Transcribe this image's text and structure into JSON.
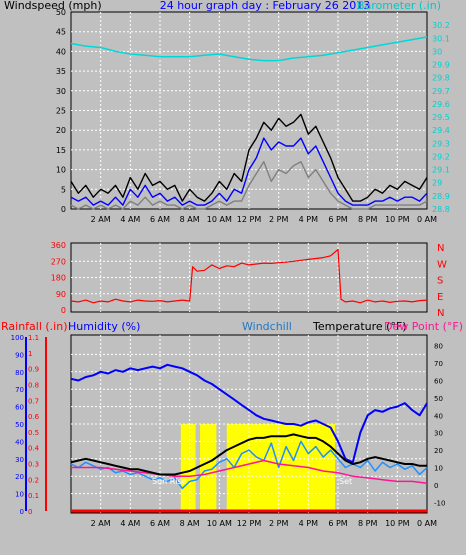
{
  "chart_data": [
    {
      "type": "line",
      "title": "24 hour graph day : February 26 2013",
      "ylabel_left": "Windspeed (mph)",
      "ylabel_right": "Barometer (.in)",
      "x_ticks": [
        "2 AM",
        "4 AM",
        "6 AM",
        "8 AM",
        "10 AM",
        "12 PM",
        "2 PM",
        "4 PM",
        "6 PM",
        "8 PM",
        "10 PM",
        "0 AM"
      ],
      "ylim_left": [
        0,
        50
      ],
      "ylim_right": [
        28.8,
        30.3
      ],
      "yticks_left": [
        0,
        5,
        10,
        15,
        20,
        25,
        30,
        35,
        40,
        45,
        50
      ],
      "yticks_right": [
        "28.8",
        "28.9",
        "29",
        "29.1",
        "29.2",
        "29.3",
        "29.4",
        "29.5",
        "29.6",
        "29.7",
        "29.8",
        "29.9",
        "30",
        "30.1",
        "30.2"
      ],
      "grid": true,
      "colors": {
        "gust": "#000000",
        "avg": "#0000ff",
        "low": "#808080",
        "barometer": "#00d8d8"
      },
      "series": [
        {
          "key": "barometer",
          "axis": "right",
          "x": [
            0,
            1,
            2,
            3,
            4,
            5,
            6,
            7,
            8,
            9,
            10,
            11,
            12,
            13,
            14,
            15,
            16,
            17,
            18,
            19,
            20,
            21,
            22,
            23,
            24
          ],
          "values": [
            30.06,
            30.04,
            30.03,
            30.0,
            29.98,
            29.97,
            29.96,
            29.96,
            29.96,
            29.97,
            29.98,
            29.96,
            29.94,
            29.93,
            29.93,
            29.95,
            29.96,
            29.97,
            29.99,
            30.01,
            30.03,
            30.05,
            30.07,
            30.09,
            30.11
          ]
        },
        {
          "key": "gust",
          "axis": "left",
          "x": [
            0,
            0.5,
            1,
            1.5,
            2,
            2.5,
            3,
            3.5,
            4,
            4.5,
            5,
            5.5,
            6,
            6.5,
            7,
            7.5,
            8,
            8.5,
            9,
            9.5,
            10,
            10.5,
            11,
            11.5,
            12,
            12.5,
            13,
            13.5,
            14,
            14.5,
            15,
            15.5,
            16,
            16.5,
            17,
            17.5,
            18,
            18.5,
            19,
            19.5,
            20,
            20.5,
            21,
            21.5,
            22,
            22.5,
            23,
            23.5,
            24
          ],
          "values": [
            7,
            4,
            6,
            3,
            5,
            4,
            6,
            3,
            8,
            5,
            9,
            6,
            7,
            5,
            6,
            2,
            5,
            3,
            2,
            4,
            7,
            5,
            9,
            7,
            15,
            18,
            22,
            20,
            23,
            21,
            22,
            24,
            19,
            21,
            17,
            13,
            8,
            5,
            2,
            2,
            3,
            5,
            4,
            6,
            5,
            7,
            6,
            5,
            8
          ]
        },
        {
          "key": "avg",
          "axis": "left",
          "x": [
            0,
            0.5,
            1,
            1.5,
            2,
            2.5,
            3,
            3.5,
            4,
            4.5,
            5,
            5.5,
            6,
            6.5,
            7,
            7.5,
            8,
            8.5,
            9,
            9.5,
            10,
            10.5,
            11,
            11.5,
            12,
            12.5,
            13,
            13.5,
            14,
            14.5,
            15,
            15.5,
            16,
            16.5,
            17,
            17.5,
            18,
            18.5,
            19,
            19.5,
            20,
            20.5,
            21,
            21.5,
            22,
            22.5,
            23,
            23.5,
            24
          ],
          "values": [
            3,
            2,
            3,
            1,
            2,
            1,
            3,
            1,
            5,
            3,
            6,
            3,
            4,
            2,
            3,
            1,
            2,
            1,
            1,
            2,
            4,
            2,
            5,
            4,
            10,
            13,
            18,
            15,
            17,
            16,
            16,
            18,
            14,
            16,
            12,
            8,
            4,
            2,
            1,
            1,
            1,
            2,
            2,
            3,
            2,
            3,
            3,
            2,
            4
          ]
        },
        {
          "key": "low",
          "axis": "left",
          "x": [
            0,
            0.5,
            1,
            1.5,
            2,
            2.5,
            3,
            3.5,
            4,
            4.5,
            5,
            5.5,
            6,
            6.5,
            7,
            7.5,
            8,
            8.5,
            9,
            9.5,
            10,
            10.5,
            11,
            11.5,
            12,
            12.5,
            13,
            13.5,
            14,
            14.5,
            15,
            15.5,
            16,
            16.5,
            17,
            17.5,
            18,
            18.5,
            19,
            19.5,
            20,
            20.5,
            21,
            21.5,
            22,
            22.5,
            23,
            23.5,
            24
          ],
          "values": [
            1,
            0,
            1,
            0,
            1,
            0,
            1,
            0,
            2,
            1,
            3,
            1,
            2,
            1,
            1,
            0,
            1,
            0,
            0,
            1,
            2,
            1,
            2,
            2,
            6,
            9,
            12,
            7,
            10,
            9,
            11,
            12,
            8,
            10,
            7,
            4,
            2,
            1,
            0,
            0,
            0,
            1,
            1,
            1,
            1,
            1,
            1,
            1,
            2
          ]
        }
      ]
    },
    {
      "type": "scatter",
      "x_ticks": [
        "2 AM",
        "4 AM",
        "6 AM",
        "8 AM",
        "10 AM",
        "12 PM",
        "2 PM",
        "4 PM",
        "6 PM",
        "8 PM",
        "10 PM",
        "0 AM"
      ],
      "ylim_left": [
        0,
        360
      ],
      "yticks_left": [
        0,
        90,
        180,
        270,
        360
      ],
      "yticks_right": [
        "N",
        "E",
        "S",
        "W",
        "N"
      ],
      "grid": true,
      "colors": {
        "direction": "#ff0000"
      },
      "series": [
        {
          "key": "direction",
          "x": [
            0,
            0.5,
            1,
            1.5,
            2,
            2.5,
            3,
            3.5,
            4,
            4.5,
            5,
            5.5,
            6,
            6.5,
            7,
            7.5,
            8,
            8.2,
            8.5,
            9,
            9.5,
            10,
            10.5,
            11,
            11.5,
            12,
            12.5,
            13,
            13.5,
            14,
            14.5,
            15,
            15.5,
            16,
            16.5,
            17,
            17.5,
            18,
            18.2,
            18.5,
            19,
            19.5,
            20,
            20.5,
            21,
            21.5,
            22,
            22.5,
            23,
            23.5,
            24
          ],
          "values": [
            50,
            45,
            55,
            40,
            50,
            45,
            60,
            50,
            45,
            55,
            50,
            48,
            52,
            45,
            50,
            55,
            50,
            240,
            215,
            220,
            250,
            230,
            245,
            240,
            260,
            250,
            255,
            260,
            258,
            262,
            265,
            270,
            275,
            280,
            285,
            290,
            300,
            335,
            60,
            45,
            50,
            40,
            55,
            45,
            50,
            42,
            48,
            50,
            45,
            52,
            55
          ]
        }
      ]
    },
    {
      "type": "line",
      "labels": {
        "rain": "Rainfall (.in)",
        "humidity": "Humidity (%)",
        "windchill": "Windchill",
        "temperature": "Temperature (°F)",
        "dewpoint": "Dew Point (°F)"
      },
      "x_ticks": [
        "2 AM",
        "4 AM",
        "6 AM",
        "8 AM",
        "10 AM",
        "12 PM",
        "2 PM",
        "4 PM",
        "6 PM",
        "8 PM",
        "10 PM",
        "0 AM"
      ],
      "yticks_rain": [
        "0",
        "0.1",
        "0.2",
        "0.3",
        "0.4",
        "0.5",
        "0.6",
        "0.7",
        "0.8",
        "0.9",
        "1",
        "1.1"
      ],
      "yticks_humidity": [
        0,
        10,
        20,
        30,
        40,
        50,
        60,
        70,
        80,
        90,
        100
      ],
      "yticks_temp": [
        -10,
        0,
        10,
        20,
        30,
        40,
        50,
        60,
        70,
        80
      ],
      "ylim_temp": [
        -15,
        85
      ],
      "grid": true,
      "annotations": {
        "sunrise": "Sun Rise",
        "sunset": "Set"
      },
      "colors": {
        "temperature": "#000000",
        "humidity": "#0000ff",
        "windchill": "#1e90ff",
        "dewpoint": "#ff1493",
        "sun": "#ffff00",
        "rain": "#ff0000"
      },
      "sun_spans": [
        [
          7.4,
          8.4
        ],
        [
          8.7,
          9.8
        ],
        [
          10.5,
          17.8
        ]
      ],
      "series": [
        {
          "key": "humidity",
          "axis": "humidity",
          "x": [
            0,
            0.5,
            1,
            1.5,
            2,
            2.5,
            3,
            3.5,
            4,
            4.5,
            5,
            5.5,
            6,
            6.5,
            7,
            7.5,
            8,
            8.5,
            9,
            9.5,
            10,
            10.5,
            11,
            11.5,
            12,
            12.5,
            13,
            13.5,
            14,
            14.5,
            15,
            15.5,
            16,
            16.5,
            17,
            17.5,
            18,
            18.5,
            19,
            19.5,
            20,
            20.5,
            21,
            21.5,
            22,
            22.5,
            23,
            23.5,
            24
          ],
          "values": [
            76,
            75,
            77,
            78,
            80,
            79,
            81,
            80,
            82,
            81,
            82,
            83,
            82,
            84,
            83,
            82,
            80,
            78,
            75,
            73,
            70,
            67,
            64,
            61,
            58,
            55,
            53,
            52,
            51,
            50,
            50,
            49,
            51,
            52,
            50,
            48,
            40,
            30,
            28,
            45,
            55,
            58,
            57,
            59,
            60,
            62,
            58,
            55,
            62
          ]
        },
        {
          "key": "temperature",
          "axis": "temp",
          "x": [
            0,
            0.5,
            1,
            1.5,
            2,
            2.5,
            3,
            3.5,
            4,
            4.5,
            5,
            5.5,
            6,
            6.5,
            7,
            7.5,
            8,
            8.5,
            9,
            9.5,
            10,
            10.5,
            11,
            11.5,
            12,
            12.5,
            13,
            13.5,
            14,
            14.5,
            15,
            15.5,
            16,
            16.5,
            17,
            17.5,
            18,
            18.5,
            19,
            19.5,
            20,
            20.5,
            21,
            21.5,
            22,
            22.5,
            23,
            23.5,
            24
          ],
          "values": [
            13,
            14,
            15,
            14,
            13,
            12,
            11,
            10,
            9,
            9,
            8,
            7,
            6,
            6,
            6,
            7,
            8,
            10,
            12,
            14,
            17,
            20,
            22,
            24,
            26,
            27,
            27,
            28,
            28,
            28,
            29,
            28,
            27,
            27,
            25,
            22,
            18,
            14,
            12,
            13,
            15,
            16,
            15,
            14,
            13,
            12,
            12,
            11,
            11
          ]
        },
        {
          "key": "windchill",
          "axis": "temp",
          "x": [
            0,
            0.5,
            1,
            1.5,
            2,
            2.5,
            3,
            3.5,
            4,
            4.5,
            5,
            5.5,
            6,
            6.5,
            7,
            7.5,
            8,
            8.5,
            9,
            9.5,
            10,
            10.5,
            11,
            11.5,
            12,
            12.5,
            13,
            13.5,
            14,
            14.5,
            15,
            15.5,
            16,
            16.5,
            17,
            17.5,
            18,
            18.5,
            19,
            19.5,
            20,
            20.5,
            21,
            21.5,
            22,
            22.5,
            23,
            23.5,
            24
          ],
          "values": [
            12,
            10,
            13,
            11,
            9,
            10,
            7,
            8,
            6,
            7,
            5,
            3,
            4,
            2,
            4,
            -2,
            2,
            3,
            8,
            9,
            13,
            15,
            10,
            18,
            20,
            16,
            14,
            24,
            10,
            22,
            14,
            25,
            18,
            22,
            16,
            20,
            15,
            10,
            12,
            10,
            14,
            8,
            13,
            10,
            12,
            9,
            11,
            6,
            10
          ]
        },
        {
          "key": "dewpoint",
          "axis": "temp",
          "x": [
            0,
            1,
            2,
            3,
            4,
            5,
            6,
            7,
            8,
            9,
            10,
            11,
            12,
            13,
            14,
            15,
            16,
            17,
            18,
            19,
            20,
            21,
            22,
            23,
            24
          ],
          "values": [
            10,
            10,
            10,
            9,
            8,
            7,
            6,
            5,
            5,
            6,
            8,
            10,
            12,
            14,
            12,
            11,
            10,
            8,
            7,
            5,
            4,
            3,
            2,
            2,
            1
          ]
        },
        {
          "key": "rain",
          "axis": "rain",
          "x": [
            0,
            24
          ],
          "values": [
            0,
            0
          ]
        }
      ]
    }
  ]
}
